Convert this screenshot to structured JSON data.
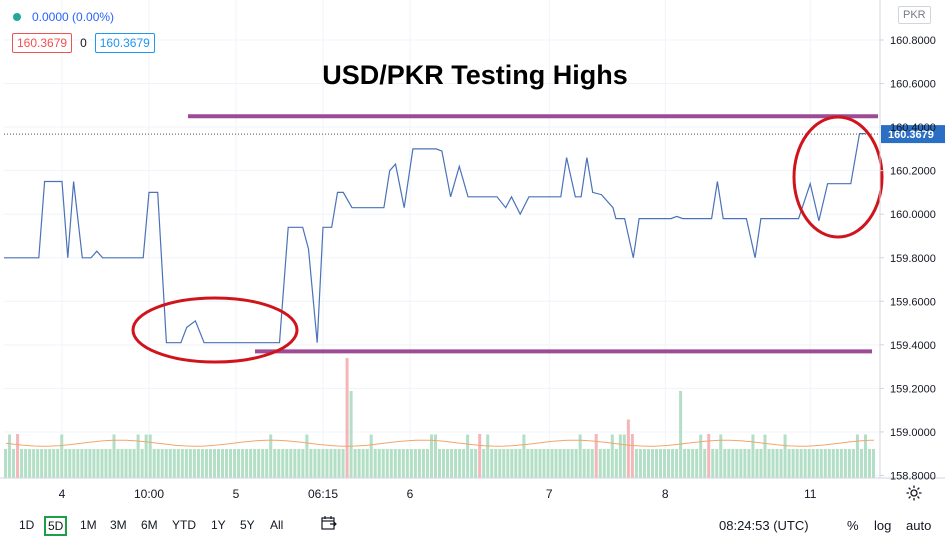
{
  "legend": {
    "change": "0.0000 (0.00%)",
    "bid": "160.3679",
    "spread": "0",
    "ask": "160.3679"
  },
  "currency_badge": "PKR",
  "colors": {
    "price_line": "#4a72b8",
    "volume_up": "#b2dfc6",
    "volume_down": "#f4b6b8",
    "ma_line": "#f0a66a",
    "annotation_line": "#9c4b96",
    "annotation_ellipse": "#d0141c",
    "last_price_tag": "#2a6fc4"
  },
  "bottom_toolbar": {
    "ranges": [
      "1D",
      "5D",
      "1M",
      "3M",
      "6M",
      "YTD",
      "1Y",
      "5Y",
      "All"
    ],
    "active_range": "5D",
    "clock": "08:24:53 (UTC)",
    "options": [
      "%",
      "log",
      "auto"
    ]
  },
  "chart_data": {
    "type": "line",
    "title": "USD/PKR Testing Highs",
    "y_axis_ticks": [
      "160.8000",
      "160.6000",
      "160.2000",
      "160.0000",
      "159.8000",
      "159.6000",
      "159.4000",
      "159.2000",
      "159.0000",
      "158.8000"
    ],
    "y_axis_hidden_tick": "160.4000",
    "ylim": [
      158.78,
      160.86
    ],
    "last_price_label": "160.3679",
    "last_price": 160.3679,
    "x_ticks": [
      {
        "label": "4",
        "x": 10
      },
      {
        "label": "10:00",
        "x": 25
      },
      {
        "label": "5",
        "x": 40
      },
      {
        "label": "06:15",
        "x": 55
      },
      {
        "label": "6",
        "x": 70
      },
      {
        "label": "7",
        "x": 94
      },
      {
        "label": "8",
        "x": 114
      },
      {
        "label": "11",
        "x": 139
      }
    ],
    "x_range": [
      0,
      150
    ],
    "series": [
      {
        "values": [
          {
            "x": 0,
            "y": 159.8
          },
          {
            "x": 6,
            "y": 159.8
          },
          {
            "x": 7,
            "y": 160.15
          },
          {
            "x": 10,
            "y": 160.15
          },
          {
            "x": 11,
            "y": 159.8
          },
          {
            "x": 12,
            "y": 160.15
          },
          {
            "x": 13.5,
            "y": 159.8
          },
          {
            "x": 15,
            "y": 159.8
          },
          {
            "x": 16,
            "y": 159.83
          },
          {
            "x": 17,
            "y": 159.8
          },
          {
            "x": 24,
            "y": 159.8
          },
          {
            "x": 25,
            "y": 160.1
          },
          {
            "x": 26.5,
            "y": 160.1
          },
          {
            "x": 28,
            "y": 159.41
          },
          {
            "x": 30.5,
            "y": 159.41
          },
          {
            "x": 31.5,
            "y": 159.48
          },
          {
            "x": 33,
            "y": 159.51
          },
          {
            "x": 34.5,
            "y": 159.41
          },
          {
            "x": 47.5,
            "y": 159.41
          },
          {
            "x": 49,
            "y": 159.94
          },
          {
            "x": 51.5,
            "y": 159.94
          },
          {
            "x": 52.5,
            "y": 159.84
          },
          {
            "x": 54,
            "y": 159.41
          },
          {
            "x": 55,
            "y": 159.94
          },
          {
            "x": 56.5,
            "y": 159.94
          },
          {
            "x": 57.5,
            "y": 160.1
          },
          {
            "x": 58.5,
            "y": 160.1
          },
          {
            "x": 60,
            "y": 160.03
          },
          {
            "x": 65.5,
            "y": 160.03
          },
          {
            "x": 66.5,
            "y": 160.2
          },
          {
            "x": 67.5,
            "y": 160.23
          },
          {
            "x": 69,
            "y": 160.03
          },
          {
            "x": 70.5,
            "y": 160.3
          },
          {
            "x": 74.5,
            "y": 160.3
          },
          {
            "x": 75.5,
            "y": 160.29
          },
          {
            "x": 77,
            "y": 160.08
          },
          {
            "x": 78.5,
            "y": 160.22
          },
          {
            "x": 80,
            "y": 160.08
          },
          {
            "x": 85,
            "y": 160.08
          },
          {
            "x": 86.5,
            "y": 160.03
          },
          {
            "x": 87.5,
            "y": 160.08
          },
          {
            "x": 89,
            "y": 160.0
          },
          {
            "x": 90.5,
            "y": 160.08
          },
          {
            "x": 96,
            "y": 160.08
          },
          {
            "x": 97,
            "y": 160.26
          },
          {
            "x": 98.5,
            "y": 160.08
          },
          {
            "x": 99.5,
            "y": 160.08
          },
          {
            "x": 100.5,
            "y": 160.26
          },
          {
            "x": 101.5,
            "y": 160.1
          },
          {
            "x": 103,
            "y": 160.09
          },
          {
            "x": 105,
            "y": 160.03
          },
          {
            "x": 105.5,
            "y": 159.98
          },
          {
            "x": 107,
            "y": 159.98
          },
          {
            "x": 108.5,
            "y": 159.8
          },
          {
            "x": 109.5,
            "y": 159.98
          },
          {
            "x": 115,
            "y": 159.98
          },
          {
            "x": 116,
            "y": 159.99
          },
          {
            "x": 117,
            "y": 159.98
          },
          {
            "x": 122,
            "y": 159.98
          },
          {
            "x": 123,
            "y": 160.15
          },
          {
            "x": 124,
            "y": 159.98
          },
          {
            "x": 128,
            "y": 159.98
          },
          {
            "x": 129.5,
            "y": 159.8
          },
          {
            "x": 130.5,
            "y": 159.98
          },
          {
            "x": 137,
            "y": 159.98
          },
          {
            "x": 139,
            "y": 160.14
          },
          {
            "x": 140.5,
            "y": 159.97
          },
          {
            "x": 142,
            "y": 160.14
          },
          {
            "x": 146,
            "y": 160.14
          },
          {
            "x": 147.5,
            "y": 160.37
          },
          {
            "x": 148.5,
            "y": 160.37
          }
        ]
      }
    ],
    "volume": {
      "values": [
        2,
        3,
        2,
        2,
        2,
        2,
        2,
        2,
        2,
        2,
        2,
        2,
        2,
        2,
        3,
        2,
        2,
        2,
        2,
        2,
        2,
        2,
        2,
        2,
        2,
        2,
        2,
        3,
        2,
        2,
        2,
        2,
        2,
        3,
        2,
        3,
        3,
        2,
        2,
        2,
        2,
        2,
        2,
        2,
        2,
        2,
        2,
        2,
        2,
        2,
        2,
        2,
        2,
        2,
        2,
        2,
        2,
        2,
        2,
        2,
        2,
        2,
        2,
        2,
        2,
        2,
        3,
        2,
        2,
        2,
        2,
        2,
        2,
        2,
        2,
        3,
        2,
        2,
        2,
        2,
        2,
        2,
        2,
        2,
        2,
        7,
        6,
        2,
        2,
        2,
        2,
        3,
        2,
        2,
        2,
        2,
        2,
        2,
        2,
        2,
        2,
        2,
        2,
        2,
        2,
        2,
        3,
        3,
        2,
        2,
        2,
        2,
        2,
        2,
        2,
        3,
        2,
        2,
        2,
        2,
        3,
        2,
        2,
        2,
        2,
        2,
        2,
        2,
        2,
        3,
        2,
        2,
        2,
        2,
        2,
        2,
        2,
        2,
        2,
        2,
        2,
        2,
        2,
        3,
        2,
        2,
        2,
        2,
        2,
        2,
        2,
        3,
        2,
        3,
        3,
        3,
        2,
        2,
        2,
        2,
        2,
        2,
        2,
        2,
        2,
        2,
        2,
        2,
        6,
        2,
        2,
        2,
        2,
        3,
        2,
        2,
        2,
        2,
        3,
        2,
        2,
        2,
        2,
        2,
        2,
        2,
        3,
        2,
        2,
        3,
        2,
        2,
        2,
        2,
        3,
        2,
        2,
        2,
        2,
        2,
        2,
        2,
        2,
        2,
        2,
        2,
        2,
        2,
        2,
        2,
        2,
        2,
        3,
        2,
        3,
        2,
        2
      ],
      "down_indices": [
        3,
        85,
        118,
        147,
        155,
        156,
        175
      ]
    },
    "annotations": {
      "resistance_level": 160.45,
      "support_level": 159.37
    }
  }
}
